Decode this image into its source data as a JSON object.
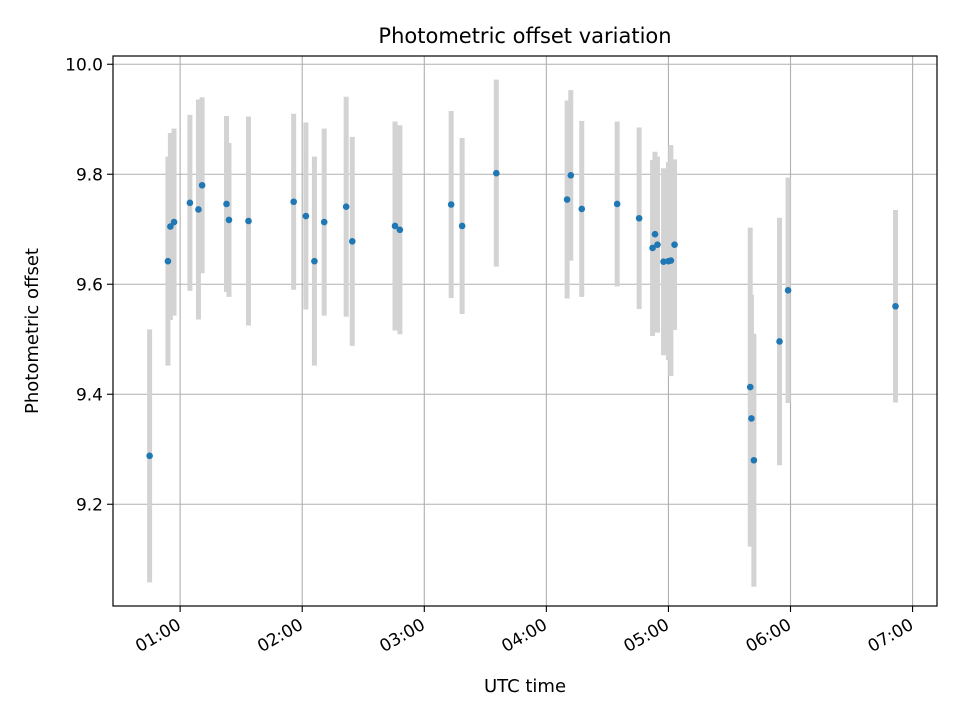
{
  "chart_data": {
    "type": "scatter",
    "title": "Photometric offset variation",
    "xlabel": "UTC time",
    "ylabel": "Photometric offset",
    "x_ticks": [
      "01:00",
      "02:00",
      "03:00",
      "04:00",
      "05:00",
      "06:00",
      "07:00"
    ],
    "x_tick_values_hours": [
      1,
      2,
      3,
      4,
      5,
      6,
      7
    ],
    "y_ticks": [
      "9.2",
      "9.4",
      "9.6",
      "9.8",
      "10.0"
    ],
    "y_tick_values": [
      9.2,
      9.4,
      9.6,
      9.8,
      10.0
    ],
    "xlim_hours": [
      0.45,
      7.2
    ],
    "ylim": [
      9.015,
      10.015
    ],
    "grid": true,
    "colors": {
      "point": "#1f77b4",
      "errorbar": "#d3d3d3",
      "grid": "#b0b0b0"
    },
    "points": [
      {
        "x": 0.75,
        "y": 9.288,
        "err": 0.23
      },
      {
        "x": 0.9,
        "y": 9.642,
        "err": 0.19
      },
      {
        "x": 0.92,
        "y": 9.705,
        "err": 0.17
      },
      {
        "x": 0.95,
        "y": 9.713,
        "err": 0.17
      },
      {
        "x": 1.08,
        "y": 9.748,
        "err": 0.16
      },
      {
        "x": 1.15,
        "y": 9.736,
        "err": 0.2
      },
      {
        "x": 1.18,
        "y": 9.78,
        "err": 0.16
      },
      {
        "x": 1.38,
        "y": 9.746,
        "err": 0.16
      },
      {
        "x": 1.4,
        "y": 9.717,
        "err": 0.14
      },
      {
        "x": 1.56,
        "y": 9.715,
        "err": 0.19
      },
      {
        "x": 1.93,
        "y": 9.75,
        "err": 0.16
      },
      {
        "x": 2.03,
        "y": 9.724,
        "err": 0.17
      },
      {
        "x": 2.1,
        "y": 9.642,
        "err": 0.19
      },
      {
        "x": 2.18,
        "y": 9.713,
        "err": 0.17
      },
      {
        "x": 2.36,
        "y": 9.741,
        "err": 0.2
      },
      {
        "x": 2.41,
        "y": 9.678,
        "err": 0.19
      },
      {
        "x": 2.76,
        "y": 9.706,
        "err": 0.19
      },
      {
        "x": 2.8,
        "y": 9.699,
        "err": 0.19
      },
      {
        "x": 3.22,
        "y": 9.745,
        "err": 0.17
      },
      {
        "x": 3.31,
        "y": 9.706,
        "err": 0.16
      },
      {
        "x": 3.59,
        "y": 9.802,
        "err": 0.17
      },
      {
        "x": 4.17,
        "y": 9.754,
        "err": 0.18
      },
      {
        "x": 4.2,
        "y": 9.798,
        "err": 0.155
      },
      {
        "x": 4.29,
        "y": 9.737,
        "err": 0.16
      },
      {
        "x": 4.58,
        "y": 9.746,
        "err": 0.15
      },
      {
        "x": 4.76,
        "y": 9.72,
        "err": 0.165
      },
      {
        "x": 4.87,
        "y": 9.666,
        "err": 0.16
      },
      {
        "x": 4.89,
        "y": 9.691,
        "err": 0.15
      },
      {
        "x": 4.91,
        "y": 9.672,
        "err": 0.16
      },
      {
        "x": 4.96,
        "y": 9.641,
        "err": 0.17
      },
      {
        "x": 5.0,
        "y": 9.642,
        "err": 0.18
      },
      {
        "x": 5.02,
        "y": 9.643,
        "err": 0.21
      },
      {
        "x": 5.05,
        "y": 9.672,
        "err": 0.155
      },
      {
        "x": 5.67,
        "y": 9.413,
        "err": 0.29
      },
      {
        "x": 5.68,
        "y": 9.356,
        "err": 0.225
      },
      {
        "x": 5.7,
        "y": 9.28,
        "err": 0.23
      },
      {
        "x": 5.91,
        "y": 9.496,
        "err": 0.225
      },
      {
        "x": 5.98,
        "y": 9.589,
        "err": 0.205
      },
      {
        "x": 6.86,
        "y": 9.56,
        "err": 0.175
      }
    ]
  }
}
